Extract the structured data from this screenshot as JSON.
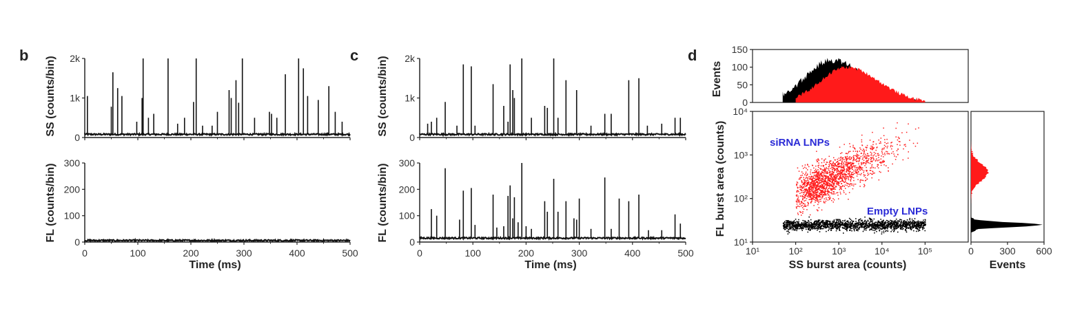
{
  "chart_data": [
    {
      "panel": "b",
      "type": "bar",
      "subplots": [
        {
          "ylabel": "SS (counts/bin)",
          "ylim": [
            0,
            2000
          ],
          "yticks": [
            "0",
            "1k",
            "2k"
          ],
          "xticks": [],
          "baseline": 80,
          "spikes": [
            {
              "x": 5,
              "y": 1050
            },
            {
              "x": 50,
              "y": 780
            },
            {
              "x": 53,
              "y": 1650
            },
            {
              "x": 62,
              "y": 1250
            },
            {
              "x": 70,
              "y": 1050
            },
            {
              "x": 98,
              "y": 400
            },
            {
              "x": 108,
              "y": 1000
            },
            {
              "x": 110,
              "y": 2000
            },
            {
              "x": 120,
              "y": 500
            },
            {
              "x": 130,
              "y": 600
            },
            {
              "x": 157,
              "y": 2000
            },
            {
              "x": 175,
              "y": 350
            },
            {
              "x": 188,
              "y": 500
            },
            {
              "x": 205,
              "y": 900
            },
            {
              "x": 210,
              "y": 2000
            },
            {
              "x": 222,
              "y": 300
            },
            {
              "x": 240,
              "y": 300
            },
            {
              "x": 250,
              "y": 650
            },
            {
              "x": 272,
              "y": 1200
            },
            {
              "x": 276,
              "y": 1000
            },
            {
              "x": 285,
              "y": 1450
            },
            {
              "x": 290,
              "y": 880
            },
            {
              "x": 297,
              "y": 2000
            },
            {
              "x": 320,
              "y": 500
            },
            {
              "x": 348,
              "y": 650
            },
            {
              "x": 352,
              "y": 600
            },
            {
              "x": 362,
              "y": 500
            },
            {
              "x": 378,
              "y": 1600
            },
            {
              "x": 403,
              "y": 2000
            },
            {
              "x": 412,
              "y": 1750
            },
            {
              "x": 420,
              "y": 1050
            },
            {
              "x": 440,
              "y": 950
            },
            {
              "x": 460,
              "y": 1300
            },
            {
              "x": 472,
              "y": 650
            },
            {
              "x": 485,
              "y": 400
            }
          ]
        },
        {
          "ylabel": "FL (counts/bin)",
          "ylim": [
            0,
            300
          ],
          "yticks": [
            "0",
            "100",
            "200",
            "300"
          ],
          "xlabel": "Time (ms)",
          "xticks": [
            "0",
            "100",
            "200",
            "300",
            "400",
            "500"
          ],
          "baseline": 6,
          "spikes": []
        }
      ]
    },
    {
      "panel": "c",
      "type": "bar",
      "subplots": [
        {
          "ylabel": "SS (counts/bin)",
          "ylim": [
            0,
            2000
          ],
          "yticks": [
            "0",
            "1k",
            "2k"
          ],
          "xticks": [],
          "baseline": 80,
          "spikes": [
            {
              "x": 15,
              "y": 350
            },
            {
              "x": 22,
              "y": 400
            },
            {
              "x": 32,
              "y": 500
            },
            {
              "x": 48,
              "y": 900
            },
            {
              "x": 70,
              "y": 300
            },
            {
              "x": 82,
              "y": 1850
            },
            {
              "x": 97,
              "y": 1800
            },
            {
              "x": 104,
              "y": 300
            },
            {
              "x": 138,
              "y": 1350
            },
            {
              "x": 158,
              "y": 800
            },
            {
              "x": 166,
              "y": 400
            },
            {
              "x": 170,
              "y": 1850
            },
            {
              "x": 175,
              "y": 1200
            },
            {
              "x": 178,
              "y": 1000
            },
            {
              "x": 192,
              "y": 2000
            },
            {
              "x": 210,
              "y": 500
            },
            {
              "x": 235,
              "y": 800
            },
            {
              "x": 240,
              "y": 750
            },
            {
              "x": 252,
              "y": 2000
            },
            {
              "x": 260,
              "y": 500
            },
            {
              "x": 275,
              "y": 1450
            },
            {
              "x": 295,
              "y": 1200
            },
            {
              "x": 322,
              "y": 300
            },
            {
              "x": 348,
              "y": 600
            },
            {
              "x": 360,
              "y": 600
            },
            {
              "x": 393,
              "y": 1450
            },
            {
              "x": 412,
              "y": 1500
            },
            {
              "x": 428,
              "y": 300
            },
            {
              "x": 455,
              "y": 350
            },
            {
              "x": 480,
              "y": 500
            },
            {
              "x": 490,
              "y": 500
            }
          ]
        },
        {
          "ylabel": "FL (counts/bin)",
          "ylim": [
            0,
            300
          ],
          "yticks": [
            "0",
            "100",
            "200",
            "300"
          ],
          "xlabel": "Time (ms)",
          "xticks": [
            "0",
            "100",
            "200",
            "300",
            "400",
            "500"
          ],
          "baseline": 15,
          "spikes": [
            {
              "x": 22,
              "y": 125
            },
            {
              "x": 32,
              "y": 100
            },
            {
              "x": 48,
              "y": 280
            },
            {
              "x": 75,
              "y": 85
            },
            {
              "x": 82,
              "y": 195
            },
            {
              "x": 97,
              "y": 205
            },
            {
              "x": 104,
              "y": 65
            },
            {
              "x": 138,
              "y": 180
            },
            {
              "x": 145,
              "y": 55
            },
            {
              "x": 158,
              "y": 60
            },
            {
              "x": 166,
              "y": 175
            },
            {
              "x": 170,
              "y": 215
            },
            {
              "x": 175,
              "y": 90
            },
            {
              "x": 178,
              "y": 170
            },
            {
              "x": 185,
              "y": 75
            },
            {
              "x": 192,
              "y": 300
            },
            {
              "x": 200,
              "y": 60
            },
            {
              "x": 210,
              "y": 50
            },
            {
              "x": 235,
              "y": 155
            },
            {
              "x": 240,
              "y": 115
            },
            {
              "x": 252,
              "y": 240
            },
            {
              "x": 260,
              "y": 115
            },
            {
              "x": 275,
              "y": 155
            },
            {
              "x": 290,
              "y": 90
            },
            {
              "x": 295,
              "y": 85
            },
            {
              "x": 300,
              "y": 165
            },
            {
              "x": 322,
              "y": 50
            },
            {
              "x": 348,
              "y": 245
            },
            {
              "x": 360,
              "y": 50
            },
            {
              "x": 375,
              "y": 165
            },
            {
              "x": 393,
              "y": 155
            },
            {
              "x": 412,
              "y": 180
            },
            {
              "x": 430,
              "y": 45
            },
            {
              "x": 455,
              "y": 45
            },
            {
              "x": 480,
              "y": 105
            },
            {
              "x": 490,
              "y": 70
            }
          ]
        }
      ]
    },
    {
      "panel": "d",
      "type": "scatter",
      "xlabel": "SS burst area (counts)",
      "ylabel": "FL burst area (counts)",
      "xscale": "log",
      "yscale": "log",
      "xlim": [
        10,
        1000000
      ],
      "ylim": [
        10,
        10000
      ],
      "xticks": [
        "10¹",
        "10²",
        "10³",
        "10⁴",
        "10⁵"
      ],
      "yticks": [
        "10¹",
        "10²",
        "10³",
        "10⁴"
      ],
      "annotations": [
        "siRNA LNPs",
        "Empty LNPs"
      ],
      "series": [
        {
          "color": "#ff1a1a",
          "cloud": {
            "x_range": [
              100,
              60000
            ],
            "y_center_at_x100": 120,
            "slope_log": 0.48,
            "spread_log": 0.22
          }
        },
        {
          "color": "#000000",
          "cloud": {
            "x_range": [
              50,
              100000
            ],
            "y_center": 25,
            "spread_log": 0.06
          }
        }
      ],
      "top_histogram": {
        "ylabel": "Events",
        "ylim": [
          0,
          150
        ],
        "yticks": [
          "0",
          "50",
          "100",
          "150"
        ],
        "series": [
          {
            "color": "#000000",
            "peak_x": 700,
            "peak": 120,
            "x_range": [
              50,
              100000
            ]
          },
          {
            "color": "#ff1a1a",
            "peak_x": 1500,
            "peak": 100,
            "x_range": [
              100,
              100000
            ]
          }
        ]
      },
      "right_histogram": {
        "xlabel": "Events",
        "xlim": [
          0,
          600
        ],
        "xticks": [
          "0",
          "300",
          "600"
        ],
        "series": [
          {
            "color": "#ff1a1a",
            "peak_y": 400,
            "peak": 140
          },
          {
            "color": "#000000",
            "peak_y": 25,
            "peak": 600
          }
        ]
      }
    }
  ],
  "labels": {
    "panel_b": "b",
    "panel_c": "c",
    "panel_d": "d",
    "time_xlabel": "Time (ms)",
    "ss_ylabel": "SS (counts/bin)",
    "fl_ylabel": "FL (counts/bin)",
    "d_xlabel": "SS burst area (counts)",
    "d_ylabel": "FL burst area (counts)",
    "events": "Events",
    "sirna": "siRNA LNPs",
    "empty": "Empty LNPs"
  }
}
